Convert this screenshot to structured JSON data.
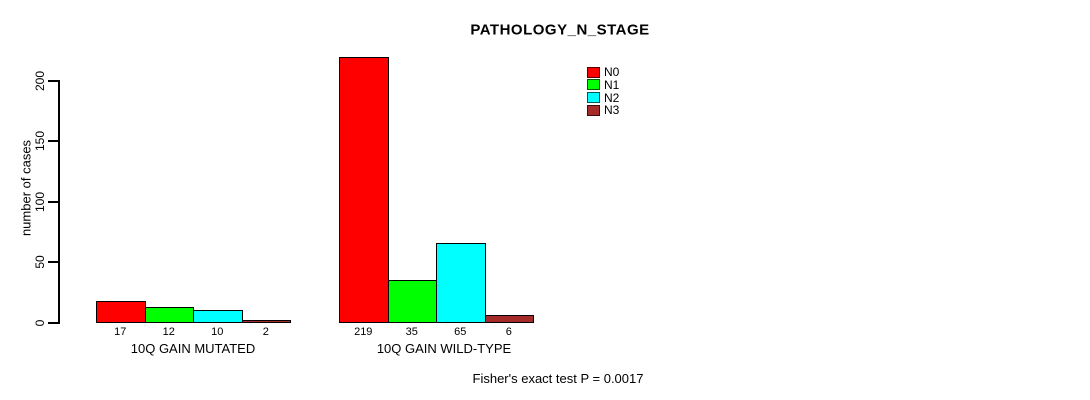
{
  "chart_data": {
    "type": "bar",
    "title": "PATHOLOGY_N_STAGE",
    "ylabel": "number of cases",
    "xlabel": "",
    "ylim": [
      0,
      220
    ],
    "yticks": [
      0,
      50,
      100,
      150,
      200
    ],
    "grid": false,
    "legend_position": "top-right",
    "categories": [
      "10Q GAIN MUTATED",
      "10Q GAIN WILD-TYPE"
    ],
    "series": [
      {
        "name": "N0",
        "color": "#ff0000",
        "values": [
          17,
          219
        ]
      },
      {
        "name": "N1",
        "color": "#00ff00",
        "values": [
          12,
          35
        ]
      },
      {
        "name": "N2",
        "color": "#00ffff",
        "values": [
          10,
          65
        ]
      },
      {
        "name": "N3",
        "color": "#a52a2a",
        "values": [
          2,
          6
        ]
      }
    ],
    "bar_value_labels": [
      [
        17,
        12,
        10,
        2
      ],
      [
        219,
        35,
        65,
        6
      ]
    ],
    "annotation": "Fisher's exact test P = 0.0017"
  }
}
